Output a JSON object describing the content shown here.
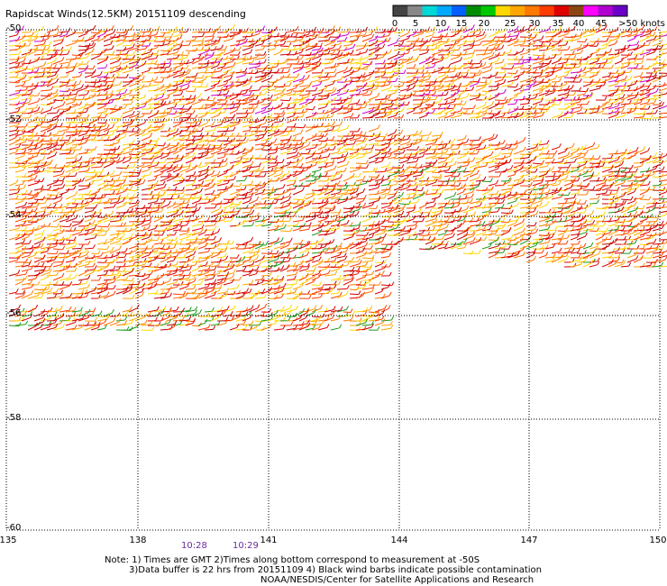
{
  "title": "Rapidscat Winds(12.5KM) 20151109 descending",
  "color_scale": {
    "colors": [
      "#444444",
      "#888888",
      "#00d7d7",
      "#00a8ff",
      "#0060ff",
      "#008c00",
      "#00c800",
      "#ffd700",
      "#ffa500",
      "#ff7800",
      "#ff3c00",
      "#e00000",
      "#8b4513",
      "#ff00ff",
      "#b000d0",
      "#6a00c8"
    ],
    "labels": [
      "0",
      "5",
      "10",
      "15",
      "20",
      "25",
      "30",
      "35",
      "40",
      "45",
      ">50 knots"
    ]
  },
  "map": {
    "lat_labels": [
      "-50",
      "-52",
      "-54",
      "-56",
      "-58",
      "-60"
    ],
    "lon_labels": [
      "135",
      "138",
      "141",
      "144",
      "147",
      "150"
    ],
    "lat_range": [
      -60,
      -50
    ],
    "lon_range": [
      135,
      150
    ],
    "grid": "dotted"
  },
  "times": [
    "10:28",
    "10:29"
  ],
  "notes": {
    "line1": "Note: 1) Times are GMT 2)Times along bottom correspond to measurement at -50S",
    "line2": "3)Data buffer is 22 hrs from 20151109 4) Black wind barbs indicate possible contamination",
    "line3": "NOAA/NESDIS/Center for Satellite Applications and Research"
  }
}
